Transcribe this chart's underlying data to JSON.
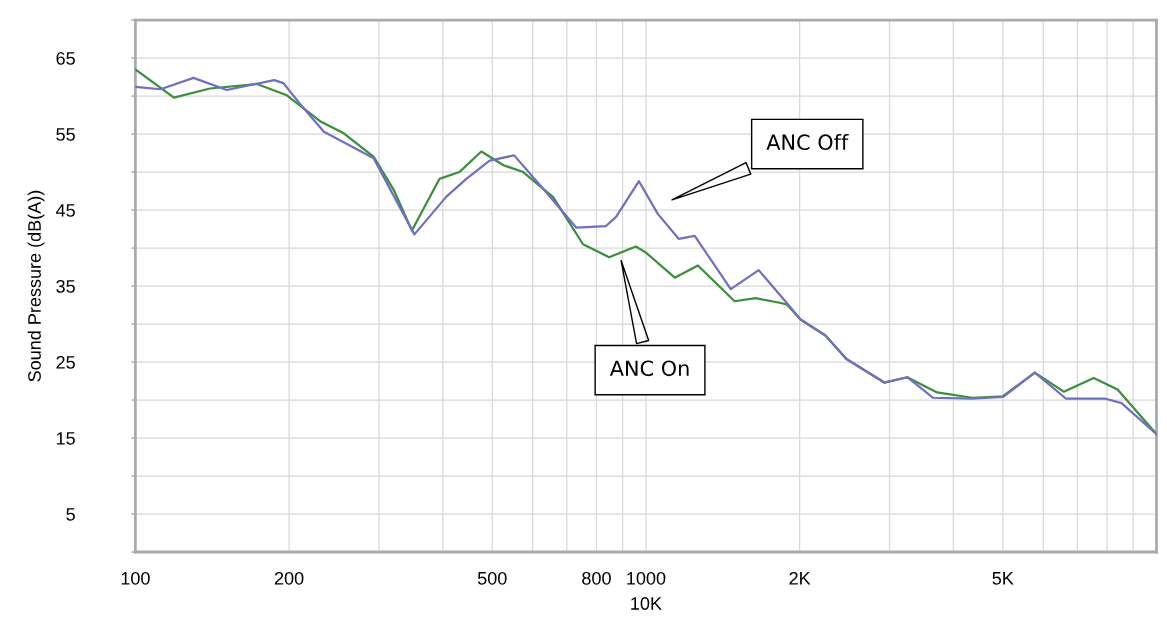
{
  "chart_data": {
    "type": "line",
    "ylabel": "Sound Pressure (dB(A))",
    "xlabel": "10K",
    "log": "x",
    "xlim": [
      100,
      10000
    ],
    "ylim": [
      0,
      70
    ],
    "xticks": [
      100,
      {
        "value": 200,
        "label": "200"
      },
      {
        "value": 300,
        "label": null
      },
      {
        "value": 400,
        "label": null
      },
      500,
      {
        "value": 600,
        "label": null
      },
      {
        "value": 700,
        "label": null
      },
      800,
      {
        "value": 900,
        "label": null
      },
      1000,
      {
        "value": 2000,
        "label": "2K"
      },
      {
        "value": 3000,
        "label": null
      },
      {
        "value": 4000,
        "label": null
      },
      {
        "value": 5000,
        "label": "5K"
      },
      {
        "value": 6000,
        "label": null
      },
      {
        "value": 7000,
        "label": null
      },
      {
        "value": 8000,
        "label": null
      },
      {
        "value": 9000,
        "label": null
      }
    ],
    "yticks": [
      {
        "value": 0,
        "label": null
      },
      5,
      {
        "value": 10,
        "label": null
      },
      15,
      {
        "value": 20,
        "label": null
      },
      25,
      {
        "value": 30,
        "label": null
      },
      35,
      {
        "value": 40,
        "label": null
      },
      45,
      {
        "value": 50,
        "label": null
      },
      55,
      {
        "value": 60,
        "label": null
      },
      65,
      {
        "value": 70,
        "label": null
      }
    ],
    "grid": true,
    "marker": "none",
    "line_style": "solid",
    "series": [
      {
        "color": "#3a8f3a",
        "x": [
          100,
          119,
          140,
          173,
          198,
          230,
          256,
          293,
          321,
          348,
          394,
          431,
          476,
          526,
          575,
          658,
          753,
          847,
          956,
          1000,
          1139,
          1264,
          1492,
          1640,
          1827,
          1886,
          2008,
          2247,
          2470,
          2930,
          3250,
          3718,
          4353,
          5002,
          5777,
          6583,
          7534,
          8390,
          10000
        ],
        "values": [
          63.5,
          59.8,
          61.0,
          61.6,
          60.1,
          56.7,
          55.1,
          52.0,
          47.6,
          42.3,
          49.1,
          50.0,
          52.7,
          50.9,
          50.0,
          46.7,
          40.5,
          38.8,
          40.2,
          39.4,
          36.1,
          37.7,
          33.0,
          33.4,
          32.8,
          32.6,
          30.6,
          28.5,
          25.4,
          22.3,
          23.0,
          21.0,
          20.3,
          20.5,
          23.6,
          21.1,
          22.9,
          21.4,
          15.5
        ]
      },
      {
        "color": "#7070c0",
        "x": [
          100,
          112,
          130,
          151,
          187,
          195,
          210,
          234,
          275,
          293,
          321,
          352,
          407,
          445,
          494,
          552,
          629,
          730,
          835,
          874,
          969,
          1055,
          1160,
          1246,
          1466,
          1663,
          1886,
          2008,
          2247,
          2470,
          2930,
          3250,
          3652,
          4353,
          5002,
          5777,
          6643,
          7914,
          8543,
          10000
        ],
        "values": [
          61.2,
          60.9,
          62.4,
          60.8,
          62.1,
          61.7,
          59.0,
          55.3,
          52.8,
          51.8,
          46.8,
          41.8,
          46.8,
          49.1,
          51.5,
          52.2,
          47.8,
          42.7,
          42.9,
          44.1,
          48.8,
          44.5,
          41.2,
          41.6,
          34.6,
          37.1,
          32.8,
          30.6,
          28.5,
          25.4,
          22.3,
          23.0,
          20.3,
          20.2,
          20.4,
          23.6,
          20.2,
          20.2,
          19.6,
          15.5
        ]
      }
    ],
    "annotations": [
      "ANC Off",
      "ANC On"
    ]
  }
}
